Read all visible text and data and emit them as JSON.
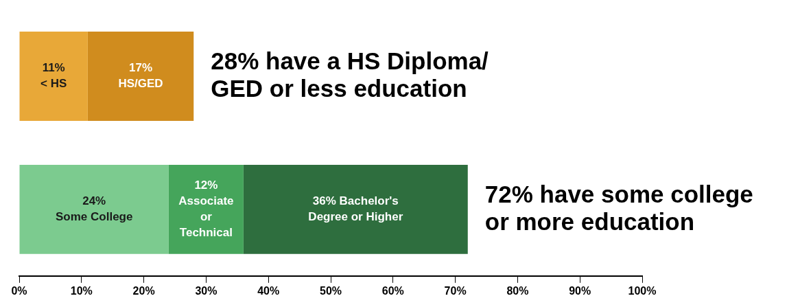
{
  "chart_data": {
    "type": "bar",
    "orientation": "horizontal",
    "stacked": true,
    "categories": [
      null,
      null
    ],
    "series": [
      {
        "color": "#e8a838",
        "values": [
          11,
          null
        ],
        "value_labels": [
          "11%\n< HS",
          null
        ]
      },
      {
        "color": "#d08c1e",
        "values": [
          17,
          null
        ],
        "value_labels": [
          "17%\nHS/GED",
          null
        ]
      },
      {
        "color": "#7ccb8f",
        "values": [
          null,
          24
        ],
        "value_labels": [
          null,
          "24%\nSome College"
        ]
      },
      {
        "color": "#45a55b",
        "values": [
          null,
          12
        ],
        "value_labels": [
          null,
          "12%\nAssociate\nor\nTechnical"
        ]
      },
      {
        "color": "#2e6e3e",
        "values": [
          null,
          36
        ],
        "value_labels": [
          null,
          "36% Bachelor's\nDegree or Higher"
        ]
      }
    ],
    "xlim": [
      0,
      100
    ],
    "xticks": [
      {
        "value": 0,
        "label": "0%"
      },
      {
        "value": 10,
        "label": "10%"
      },
      {
        "value": 20,
        "label": "20%"
      },
      {
        "value": 30,
        "label": "30%"
      },
      {
        "value": 40,
        "label": "40%"
      },
      {
        "value": 50,
        "label": "50%"
      },
      {
        "value": 60,
        "label": "60%"
      },
      {
        "value": 70,
        "label": "70%"
      },
      {
        "value": 80,
        "label": "80%"
      },
      {
        "value": 90,
        "label": "90%"
      },
      {
        "value": 100,
        "label": "100%"
      }
    ],
    "tick_labels": "x",
    "grid": false,
    "legend": false,
    "annotations": [
      "28% have a HS Diploma/\nGED or less education",
      "72% have some college\nor more education"
    ]
  }
}
